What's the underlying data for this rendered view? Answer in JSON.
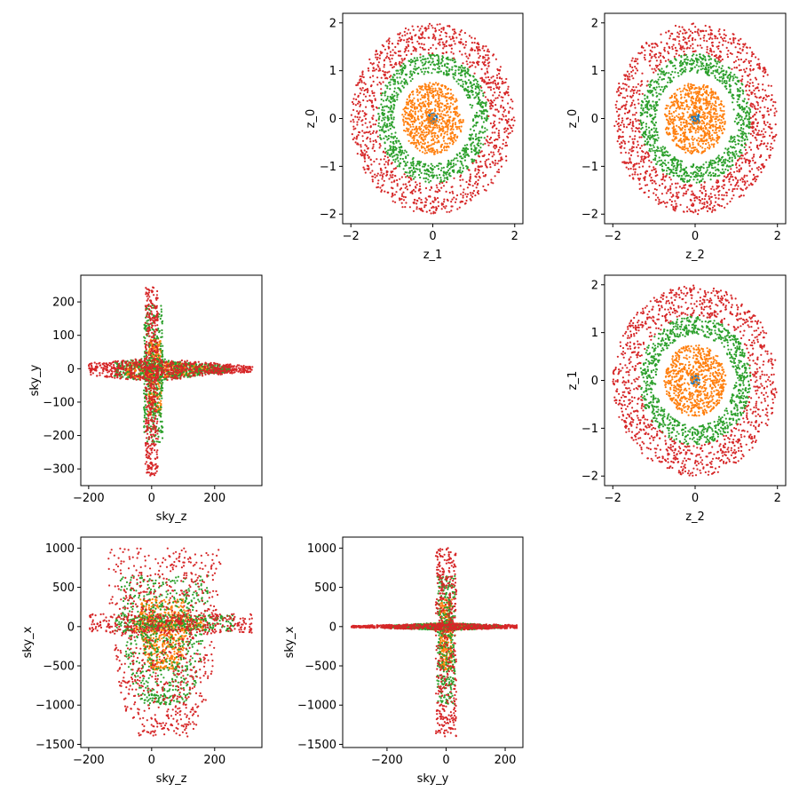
{
  "colors": {
    "blue": "#1f77b4",
    "orange": "#ff7f0e",
    "green": "#2ca02c",
    "red": "#d62728"
  },
  "chart_data": [
    {
      "id": "p01",
      "type": "scatter",
      "xlabel": "z_1",
      "ylabel": "z_0",
      "xlim": [
        -2.2,
        2.2
      ],
      "ylim": [
        -2.2,
        2.2
      ],
      "xticks": [
        -2,
        0,
        2
      ],
      "yticks": [
        -2,
        -1,
        0,
        1,
        2
      ],
      "series": [
        {
          "color": "blue",
          "shape": "ring",
          "r": [
            0.0,
            0.12
          ]
        },
        {
          "color": "orange",
          "shape": "ring",
          "r": [
            0.0,
            0.75
          ]
        },
        {
          "color": "green",
          "shape": "ring",
          "r": [
            0.95,
            1.35
          ]
        },
        {
          "color": "red",
          "shape": "ring",
          "r": [
            1.35,
            2.0
          ]
        }
      ]
    },
    {
      "id": "p02",
      "type": "scatter",
      "xlabel": "z_2",
      "ylabel": "z_0",
      "xlim": [
        -2.2,
        2.2
      ],
      "ylim": [
        -2.2,
        2.2
      ],
      "xticks": [
        -2,
        0,
        2
      ],
      "yticks": [
        -2,
        -1,
        0,
        1,
        2
      ],
      "series": [
        {
          "color": "blue",
          "shape": "ring",
          "r": [
            0.0,
            0.12
          ]
        },
        {
          "color": "orange",
          "shape": "ring",
          "r": [
            0.0,
            0.75
          ]
        },
        {
          "color": "green",
          "shape": "ring",
          "r": [
            0.95,
            1.35
          ]
        },
        {
          "color": "red",
          "shape": "ring",
          "r": [
            1.35,
            2.0
          ]
        }
      ]
    },
    {
      "id": "p10",
      "type": "scatter",
      "xlabel": "sky_z",
      "ylabel": "sky_y",
      "xlim": [
        -225,
        350
      ],
      "ylim": [
        -350,
        280
      ],
      "xticks": [
        -200,
        0,
        200
      ],
      "yticks": [
        -300,
        -200,
        -100,
        0,
        100,
        200
      ],
      "series": [
        {
          "color": "blue",
          "shape": "box",
          "x": [
            -10,
            10
          ],
          "y": [
            -10,
            10
          ]
        },
        {
          "color": "orange",
          "shape": "cross",
          "hx": [
            -80,
            200
          ],
          "hy": [
            -25,
            20
          ],
          "vx": [
            -10,
            30
          ],
          "vy": [
            -140,
            90
          ]
        },
        {
          "color": "green",
          "shape": "cross",
          "hx": [
            -120,
            250
          ],
          "hy": [
            -30,
            25
          ],
          "vx": [
            -25,
            35
          ],
          "vy": [
            -220,
            190
          ]
        },
        {
          "color": "red",
          "shape": "cross",
          "hx": [
            -200,
            320
          ],
          "hy": [
            -30,
            25
          ],
          "vx": [
            -20,
            20
          ],
          "vy": [
            -320,
            245
          ]
        }
      ]
    },
    {
      "id": "p12",
      "type": "scatter",
      "xlabel": "z_2",
      "ylabel": "z_1",
      "xlim": [
        -2.2,
        2.2
      ],
      "ylim": [
        -2.2,
        2.2
      ],
      "xticks": [
        -2,
        0,
        2
      ],
      "yticks": [
        -2,
        -1,
        0,
        1,
        2
      ],
      "series": [
        {
          "color": "blue",
          "shape": "ring",
          "r": [
            0.0,
            0.12
          ]
        },
        {
          "color": "orange",
          "shape": "ring",
          "r": [
            0.0,
            0.75
          ]
        },
        {
          "color": "green",
          "shape": "ring",
          "r": [
            0.95,
            1.35
          ]
        },
        {
          "color": "red",
          "shape": "ring",
          "r": [
            1.35,
            2.0
          ]
        }
      ]
    },
    {
      "id": "p20",
      "type": "scatter",
      "xlabel": "sky_z",
      "ylabel": "sky_x",
      "xlim": [
        -225,
        350
      ],
      "ylim": [
        -1540,
        1140
      ],
      "xticks": [
        -200,
        0,
        200
      ],
      "yticks": [
        -1500,
        -1000,
        -500,
        0,
        500,
        1000
      ],
      "series": [
        {
          "color": "blue",
          "shape": "box",
          "x": [
            -10,
            10
          ],
          "y": [
            -20,
            20
          ]
        },
        {
          "color": "orange",
          "shape": "cup",
          "xc": 40,
          "hw": 80,
          "ytop": 350,
          "ybot": -550,
          "band": [
            -60,
            120
          ],
          "bandx": [
            -60,
            170
          ]
        },
        {
          "color": "green",
          "shape": "cup",
          "xc": 40,
          "hw": 140,
          "ytop": 650,
          "ybot": -1000,
          "band": [
            -60,
            150
          ],
          "bandx": [
            -120,
            260
          ]
        },
        {
          "color": "red",
          "shape": "cup",
          "xc": 40,
          "hw": 180,
          "ytop": 1000,
          "ybot": -1400,
          "band": [
            -80,
            160
          ],
          "bandx": [
            -200,
            320
          ]
        }
      ]
    },
    {
      "id": "p21",
      "type": "scatter",
      "xlabel": "sky_y",
      "ylabel": "sky_x",
      "xlim": [
        -350,
        260
      ],
      "ylim": [
        -1540,
        1140
      ],
      "xticks": [
        -200,
        0,
        200
      ],
      "yticks": [
        -1500,
        -1000,
        -500,
        0,
        500,
        1000
      ],
      "series": [
        {
          "color": "blue",
          "shape": "box",
          "x": [
            -8,
            8
          ],
          "y": [
            -20,
            20
          ]
        },
        {
          "color": "orange",
          "shape": "cross",
          "hx": [
            -130,
            90
          ],
          "hy": [
            -40,
            40
          ],
          "vx": [
            -20,
            20
          ],
          "vy": [
            -550,
            350
          ]
        },
        {
          "color": "green",
          "shape": "cross",
          "hx": [
            -220,
            190
          ],
          "hy": [
            -40,
            40
          ],
          "vx": [
            -30,
            30
          ],
          "vy": [
            -1000,
            650
          ]
        },
        {
          "color": "red",
          "shape": "cross",
          "hx": [
            -320,
            240
          ],
          "hy": [
            -35,
            35
          ],
          "vx": [
            -35,
            35
          ],
          "vy": [
            -1400,
            1000
          ]
        }
      ]
    }
  ]
}
